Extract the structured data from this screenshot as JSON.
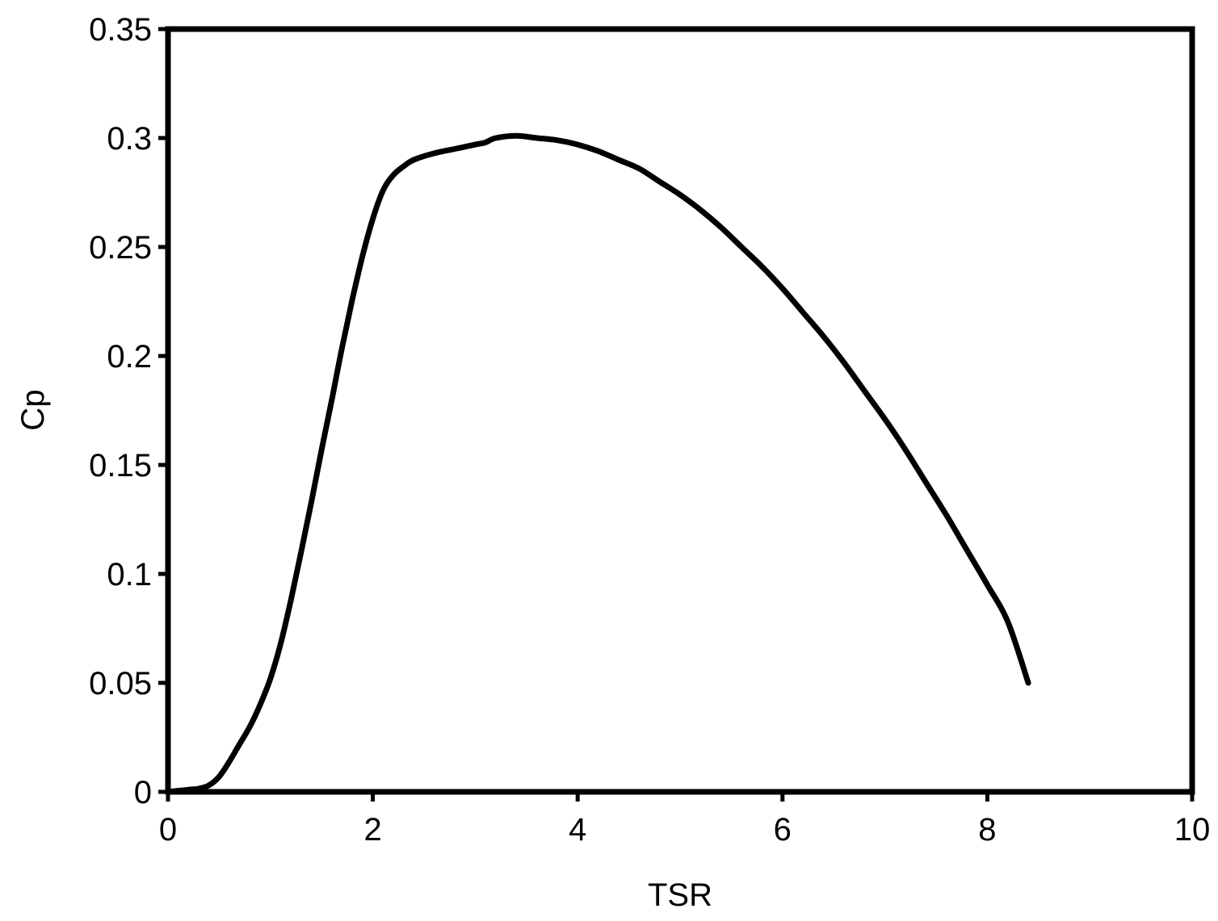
{
  "chart_data": {
    "type": "line",
    "title": "",
    "xlabel": "TSR",
    "ylabel": "Cp",
    "xlim": [
      0,
      10
    ],
    "ylim": [
      0,
      0.35
    ],
    "xticks": [
      0,
      2,
      4,
      6,
      8,
      10
    ],
    "yticks": [
      0,
      0.05,
      0.1,
      0.15,
      0.2,
      0.25,
      0.3,
      0.35
    ],
    "grid": false,
    "legend": "none",
    "line_color": "#000000",
    "series": [
      {
        "x": [
          0.0,
          0.1,
          0.2,
          0.3,
          0.4,
          0.5,
          0.6,
          0.7,
          0.8,
          0.9,
          1.0,
          1.1,
          1.2,
          1.3,
          1.4,
          1.5,
          1.6,
          1.7,
          1.8,
          1.9,
          2.0,
          2.1,
          2.2,
          2.3,
          2.4,
          2.6,
          2.8,
          3.0,
          3.1,
          3.2,
          3.4,
          3.6,
          3.8,
          4.0,
          4.2,
          4.4,
          4.6,
          4.8,
          5.0,
          5.2,
          5.4,
          5.6,
          5.8,
          6.0,
          6.2,
          6.4,
          6.6,
          6.8,
          7.0,
          7.2,
          7.4,
          7.6,
          7.8,
          8.0,
          8.2,
          8.4
        ],
        "y": [
          0.0,
          0.0005,
          0.001,
          0.0015,
          0.003,
          0.007,
          0.014,
          0.022,
          0.03,
          0.04,
          0.052,
          0.068,
          0.088,
          0.11,
          0.133,
          0.157,
          0.18,
          0.204,
          0.226,
          0.246,
          0.263,
          0.276,
          0.283,
          0.287,
          0.29,
          0.293,
          0.295,
          0.297,
          0.298,
          0.3,
          0.301,
          0.3,
          0.299,
          0.297,
          0.294,
          0.29,
          0.286,
          0.28,
          0.274,
          0.267,
          0.259,
          0.25,
          0.241,
          0.231,
          0.22,
          0.209,
          0.197,
          0.184,
          0.171,
          0.157,
          0.142,
          0.127,
          0.111,
          0.095,
          0.078,
          0.05
        ]
      }
    ]
  }
}
